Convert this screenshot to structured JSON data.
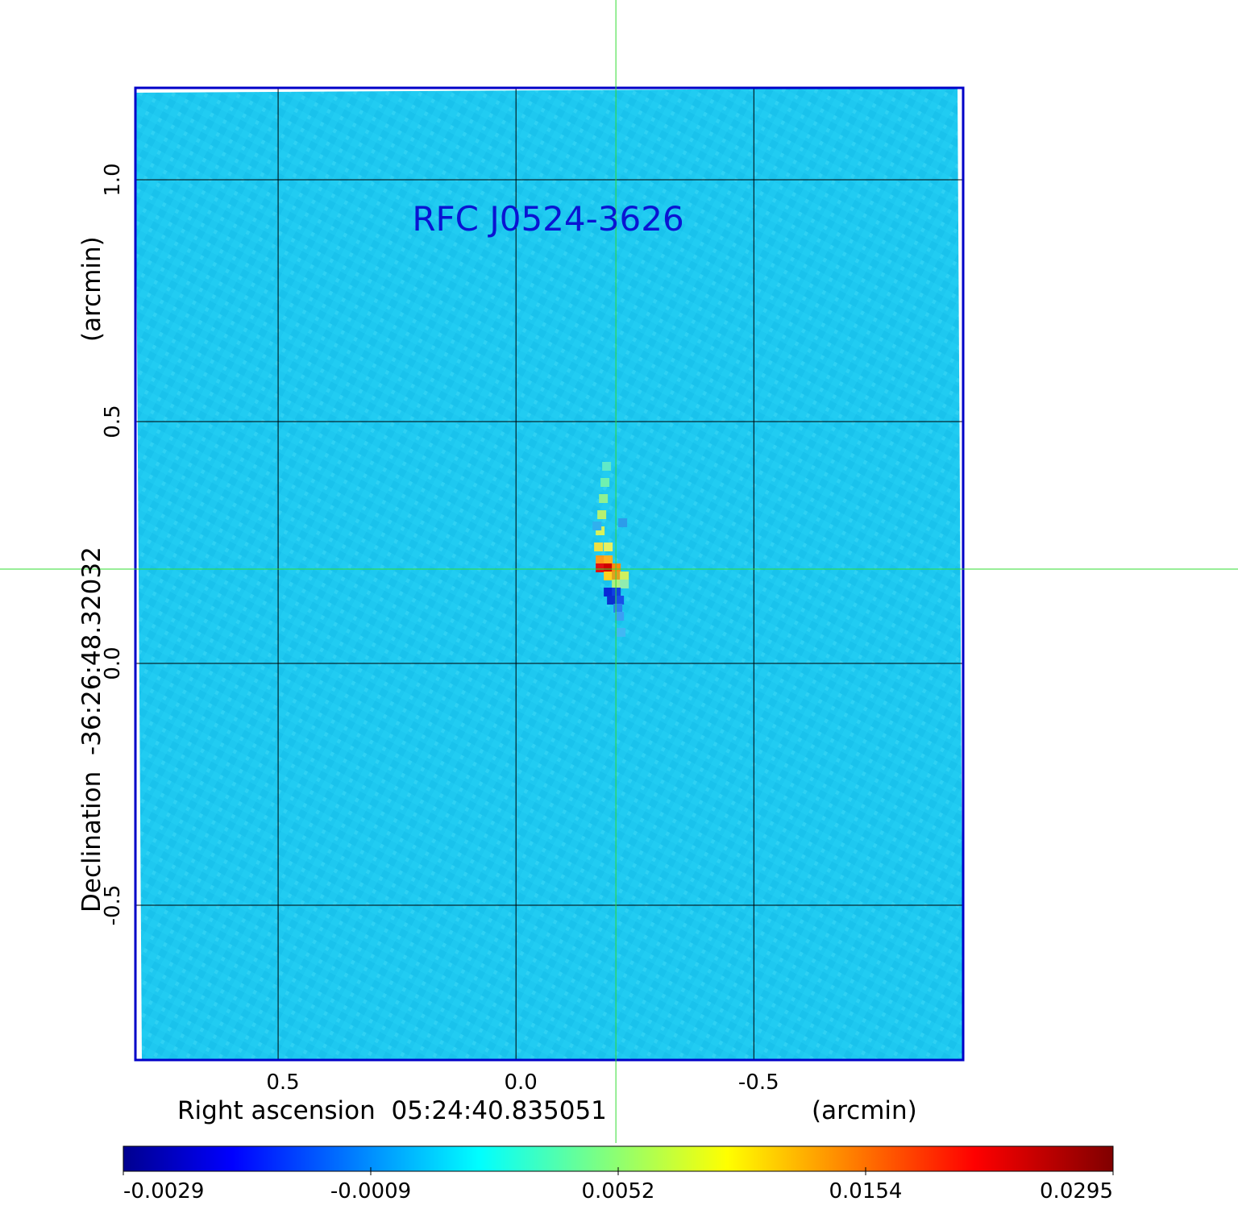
{
  "chart_data": {
    "type": "heatmap",
    "title": "RFC J0524-3626",
    "xlabel": "Right ascension  05:24:40.835051",
    "xunit": "(arcmin)",
    "ylabel": "Declination  -36:26:48.32032",
    "yunit": "(arcmin)",
    "xlim": [
      0.8,
      -0.94
    ],
    "ylim": [
      -0.82,
      1.19
    ],
    "xticks": [
      0.5,
      0.0,
      -0.5
    ],
    "xtick_labels": [
      "0.5",
      "0.0",
      "-0.5"
    ],
    "yticks": [
      1.0,
      0.5,
      0.0,
      -0.5
    ],
    "ytick_labels": [
      "1.0",
      "0.5",
      "0.0",
      "-0.5"
    ],
    "grid": true,
    "crosshair": {
      "x": -0.21,
      "y": 0.195
    },
    "source": {
      "x": -0.21,
      "y": 0.2,
      "peak": 0.0295
    },
    "colorbar": {
      "colormap": "jet",
      "range": [
        -0.0029,
        0.0295
      ],
      "ticks": [
        -0.0029,
        -0.0009,
        0.0052,
        0.0154,
        0.0295
      ],
      "tick_labels": [
        "-0.0029",
        "-0.0009",
        "0.0052",
        "0.0154",
        "0.0295"
      ]
    }
  },
  "colors": {
    "frame": "#0000c8",
    "title": "#0a14d2",
    "background_field": "#1ec8f0",
    "crosshair": "#32dc32",
    "grid": "#000000"
  }
}
